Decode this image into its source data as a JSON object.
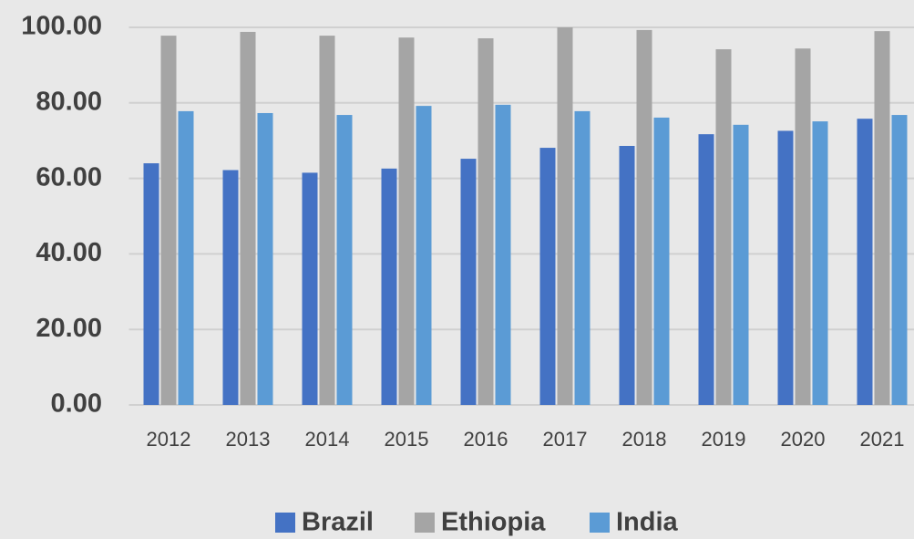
{
  "chart_data": {
    "type": "bar",
    "categories": [
      "2012",
      "2013",
      "2014",
      "2015",
      "2016",
      "2017",
      "2018",
      "2019",
      "2020",
      "2021"
    ],
    "series": [
      {
        "name": "Brazil",
        "color": "#4472c4",
        "values": [
          64.0,
          62.2,
          61.5,
          62.6,
          65.2,
          68.1,
          68.6,
          71.7,
          72.6,
          75.8
        ]
      },
      {
        "name": "Ethiopia",
        "color": "#a5a5a5",
        "values": [
          97.8,
          98.8,
          97.8,
          97.3,
          97.1,
          100.0,
          99.3,
          94.2,
          94.4,
          99.0
        ]
      },
      {
        "name": "India",
        "color": "#5b9bd5",
        "values": [
          77.8,
          77.3,
          76.8,
          79.2,
          79.5,
          77.8,
          76.1,
          74.2,
          75.1,
          76.8
        ]
      }
    ],
    "ylim": [
      0,
      100
    ],
    "yticks": [
      {
        "value": 0,
        "label": "0.00"
      },
      {
        "value": 20,
        "label": "20.00"
      },
      {
        "value": 40,
        "label": "40.00"
      },
      {
        "value": 60,
        "label": "60.00"
      },
      {
        "value": 80,
        "label": "80.00"
      },
      {
        "value": 100,
        "label": "100.00"
      }
    ],
    "grid": true,
    "legend": "bottom"
  }
}
